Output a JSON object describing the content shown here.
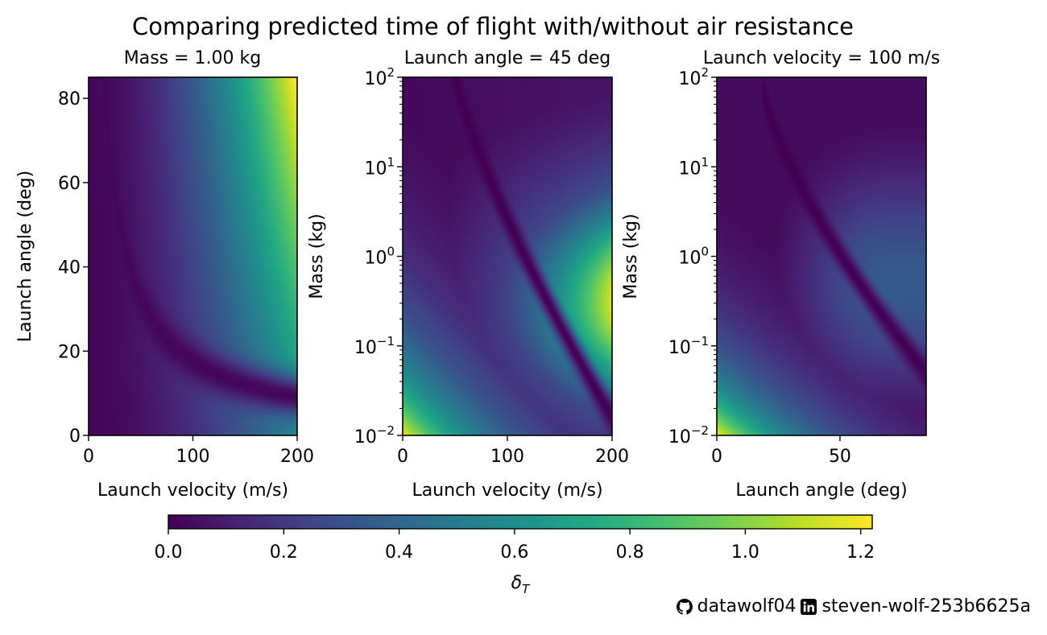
{
  "figure": {
    "suptitle": "Comparing predicted time of flight with/without air resistance"
  },
  "chart_data": [
    {
      "type": "heatmap",
      "title": "Mass = 1.00 kg",
      "xlabel": "Launch velocity (m/s)",
      "ylabel": "Launch angle (deg)",
      "xlim": [
        0,
        200
      ],
      "ylim": [
        0,
        85
      ],
      "yscale": "linear",
      "xticks": [
        0,
        100,
        200
      ],
      "yticks": [
        0,
        20,
        40,
        60,
        80
      ],
      "description_values": "delta_T rises with launch velocity; valley of ~0 along curve from (45,85) to (200,10); max ~1.22 at (200,85)"
    },
    {
      "type": "heatmap",
      "title": "Launch angle = 45 deg",
      "xlabel": "Launch velocity (m/s)",
      "ylabel": "Mass (kg)",
      "xlim": [
        0,
        200
      ],
      "ylim": [
        0.01,
        100
      ],
      "yscale": "log",
      "xticks": [
        0,
        100,
        200
      ],
      "yticks": [
        0.01,
        0.1,
        1,
        10,
        100
      ],
      "description_values": "valley of ~0 along curve from (60,100) to (200,0.015); high ~1.2 at (0,0.01) and ~1.15 at (200,0.3)"
    },
    {
      "type": "heatmap",
      "title": "Launch velocity = 100 m/s",
      "xlabel": "Launch angle (deg)",
      "ylabel": "Mass (kg)",
      "xlim": [
        0,
        85
      ],
      "ylim": [
        0.01,
        100
      ],
      "yscale": "log",
      "xticks": [
        0,
        50
      ],
      "yticks": [
        0.01,
        0.1,
        1,
        10,
        100
      ],
      "description_values": "valley of ~0 along curve from (18,100) to (85,0.05); max ~1.2 at (0,0.01)"
    }
  ],
  "colorbar": {
    "label": "δ_T",
    "label_main": "δ",
    "label_sub": "T",
    "min": 0,
    "max": 1.22,
    "colormap": "viridis",
    "ticks": [
      0.0,
      0.2,
      0.4,
      0.6,
      0.8,
      1.0,
      1.2
    ],
    "tick_labels": [
      "0.0",
      "0.2",
      "0.4",
      "0.6",
      "0.8",
      "1.0",
      "1.2"
    ]
  },
  "footer": {
    "github_user": "datawolf04",
    "linkedin_user": "steven-wolf-253b6625a",
    "github_icon": "github-icon",
    "linkedin_icon": "linkedin-icon"
  }
}
